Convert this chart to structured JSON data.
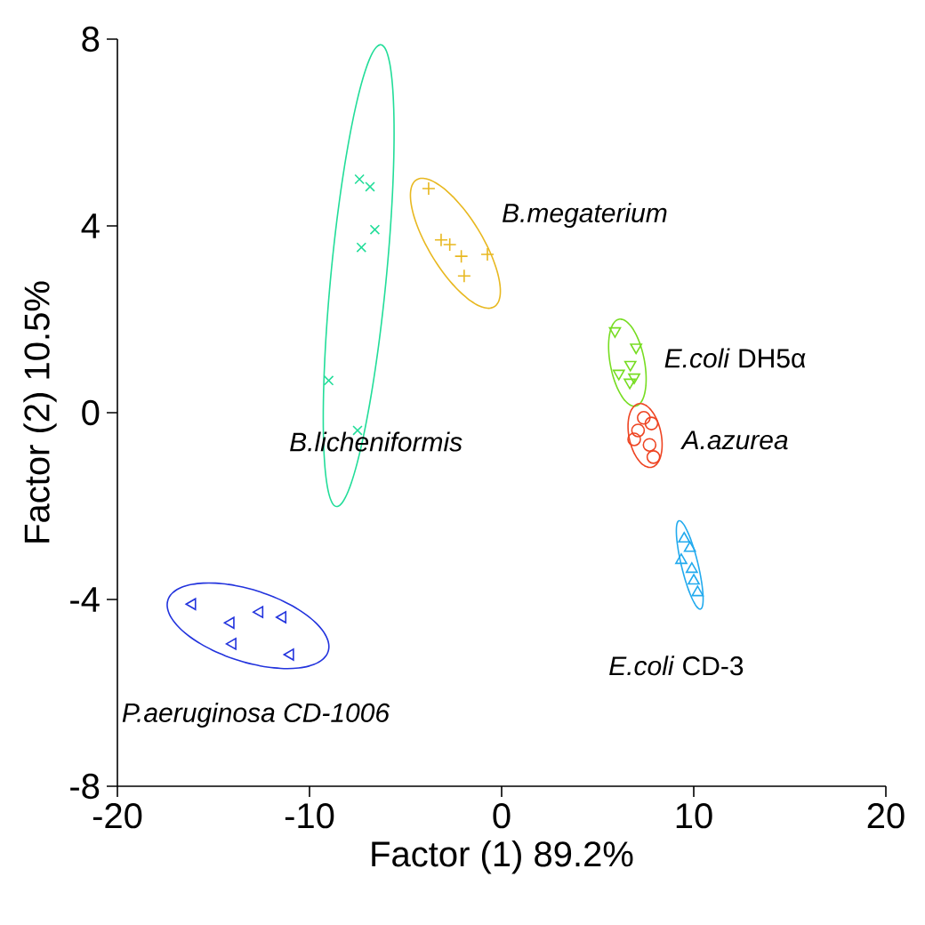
{
  "chart_data": {
    "type": "scatter",
    "xlabel": "Factor (1) 89.2%",
    "ylabel": "Factor (2) 10.5%",
    "xlim": [
      -20,
      20
    ],
    "ylim": [
      -8,
      8
    ],
    "xticks": [
      -20,
      -10,
      0,
      10,
      20
    ],
    "yticks": [
      -8,
      -4,
      0,
      4,
      8
    ],
    "grid": false,
    "series": [
      {
        "name": "*B.licheniformis*",
        "color": "#22dd99",
        "marker": "cross",
        "x": [
          -7.4,
          -6.85,
          -7.3,
          -6.6,
          -9.0,
          -7.5
        ],
        "values": [
          5.0,
          4.84,
          3.54,
          3.92,
          0.69,
          -0.38
        ]
      },
      {
        "name": "*B.megaterium*",
        "color": "#e8b820",
        "marker": "plus",
        "x": [
          -3.8,
          -3.15,
          -2.7,
          -2.1,
          -1.95,
          -0.74
        ],
        "values": [
          4.8,
          3.7,
          3.6,
          3.35,
          2.93,
          3.39
        ]
      },
      {
        "name": "*E.coli* DH5α",
        "color": "#77dd22",
        "marker": "triangle down",
        "x": [
          5.9,
          7.0,
          6.7,
          6.1,
          6.9,
          6.67
        ],
        "values": [
          1.75,
          1.4,
          1.03,
          0.84,
          0.76,
          0.65
        ]
      },
      {
        "name": "*A.azurea*",
        "color": "#ee4422",
        "marker": "circle",
        "x": [
          6.9,
          7.4,
          7.8,
          7.7,
          7.9,
          7.1
        ],
        "values": [
          -0.57,
          -0.11,
          -0.23,
          -0.69,
          -0.95,
          -0.38
        ]
      },
      {
        "name": "*E.coli* CD-3",
        "color": "#22aaee",
        "marker": "triangle",
        "x": [
          9.5,
          9.8,
          9.35,
          9.9,
          10.0,
          10.2
        ],
        "values": [
          -2.7,
          -2.9,
          -3.16,
          -3.35,
          -3.6,
          -3.85
        ]
      },
      {
        "name": "*P.aeruginosa CD-1006*",
        "color": "#2233dd",
        "marker": "triangle left",
        "x": [
          -16.1,
          -14.1,
          -12.6,
          -11.4,
          -14.0,
          -11.0
        ],
        "values": [
          -4.1,
          -4.5,
          -4.27,
          -4.38,
          -4.95,
          -5.18
        ]
      }
    ]
  }
}
